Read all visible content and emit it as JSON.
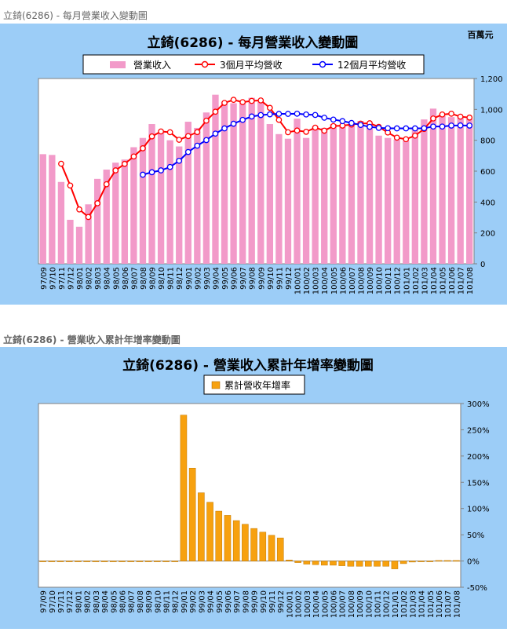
{
  "section1": {
    "heading": "立錡(6286) - 每月營業收入變動圖"
  },
  "section2": {
    "heading": "立錡(6286) -   營業收入累計年增率變動圖"
  },
  "chart_data": [
    {
      "type": "bar",
      "title": "立錡(6286) - 每月營業收入變動圖",
      "unit_label": "百萬元",
      "ylim": [
        0,
        1200
      ],
      "yticks": [
        "0",
        "200",
        "400",
        "600",
        "800",
        "1,000",
        "1,200"
      ],
      "grid": false,
      "legend_position": "top",
      "categories": [
        "97/09",
        "97/10",
        "97/11",
        "97/12",
        "98/01",
        "98/02",
        "98/03",
        "98/04",
        "98/05",
        "98/06",
        "98/07",
        "98/08",
        "98/09",
        "98/10",
        "98/11",
        "98/12",
        "99/01",
        "99/02",
        "99/03",
        "99/04",
        "99/05",
        "99/06",
        "99/07",
        "99/08",
        "99/09",
        "99/10",
        "99/11",
        "99/12",
        "100/01",
        "100/02",
        "100/03",
        "100/04",
        "100/05",
        "100/06",
        "100/07",
        "100/08",
        "100/09",
        "100/10",
        "100/11",
        "100/12",
        "101/01",
        "101/02",
        "101/03",
        "101/04",
        "101/05",
        "101/06",
        "101/07",
        "101/08"
      ],
      "series": [
        {
          "name": "營業收入",
          "kind": "bar",
          "color": "#f29ac9",
          "values": [
            710,
            705,
            530,
            285,
            240,
            385,
            550,
            610,
            655,
            675,
            755,
            815,
            905,
            850,
            800,
            760,
            920,
            880,
            980,
            1095,
            1050,
            1040,
            1050,
            1075,
            1050,
            905,
            840,
            810,
            940,
            815,
            890,
            880,
            905,
            900,
            900,
            925,
            905,
            830,
            815,
            805,
            800,
            885,
            935,
            1005,
            960,
            950,
            950,
            940
          ]
        },
        {
          "name": "3個月平均營收",
          "kind": "line",
          "color": "#ff0000",
          "values": [
            null,
            null,
            648,
            507,
            352,
            303,
            392,
            515,
            605,
            647,
            695,
            748,
            825,
            857,
            852,
            803,
            827,
            853,
            927,
            985,
            1042,
            1062,
            1047,
            1055,
            1058,
            1010,
            932,
            852,
            863,
            855,
            882,
            862,
            892,
            895,
            902,
            908,
            910,
            887,
            850,
            817,
            807,
            830,
            873,
            941,
            967,
            972,
            953,
            947
          ]
        },
        {
          "name": "12個月平均營收",
          "kind": "line",
          "color": "#0000ff",
          "values": [
            null,
            null,
            null,
            null,
            null,
            null,
            null,
            null,
            null,
            null,
            null,
            577,
            593,
            605,
            627,
            667,
            724,
            765,
            801,
            843,
            877,
            907,
            932,
            954,
            963,
            968,
            971,
            971,
            972,
            967,
            964,
            946,
            934,
            924,
            912,
            899,
            887,
            880,
            878,
            877,
            877,
            877,
            878,
            889,
            889,
            895,
            896,
            895
          ]
        }
      ]
    },
    {
      "type": "bar",
      "title": "立錡(6286) -  營業收入累計年增率變動圖",
      "ylim": [
        -50,
        300
      ],
      "yticks": [
        "-50%",
        "0%",
        "50%",
        "100%",
        "150%",
        "200%",
        "250%",
        "300%"
      ],
      "grid": false,
      "legend_position": "top",
      "categories": [
        "97/09",
        "97/10",
        "97/11",
        "97/12",
        "98/01",
        "98/02",
        "98/03",
        "98/04",
        "98/05",
        "98/06",
        "98/07",
        "98/08",
        "98/09",
        "98/10",
        "98/11",
        "98/12",
        "99/01",
        "99/02",
        "99/03",
        "99/04",
        "99/05",
        "99/06",
        "99/07",
        "99/08",
        "99/09",
        "99/10",
        "99/11",
        "99/12",
        "100/01",
        "100/02",
        "100/03",
        "100/04",
        "100/05",
        "100/06",
        "100/07",
        "100/08",
        "100/09",
        "100/10",
        "100/11",
        "100/12",
        "101/01",
        "101/02",
        "101/03",
        "101/04",
        "101/05",
        "101/06",
        "101/07",
        "101/08"
      ],
      "series": [
        {
          "name": "累計營收年增率",
          "kind": "bar",
          "color": "#f7a10f",
          "values": [
            0,
            0,
            0,
            0,
            0,
            0,
            0,
            0,
            0,
            0,
            0,
            0,
            0,
            0,
            0,
            0,
            278,
            177,
            130,
            112,
            95,
            87,
            77,
            70,
            62,
            55,
            49,
            44,
            2,
            -3,
            -6,
            -7,
            -8,
            -8,
            -9,
            -10,
            -10,
            -10,
            -10,
            -10,
            -15,
            -5,
            -2,
            -1,
            0,
            1,
            1,
            1
          ]
        }
      ]
    }
  ]
}
